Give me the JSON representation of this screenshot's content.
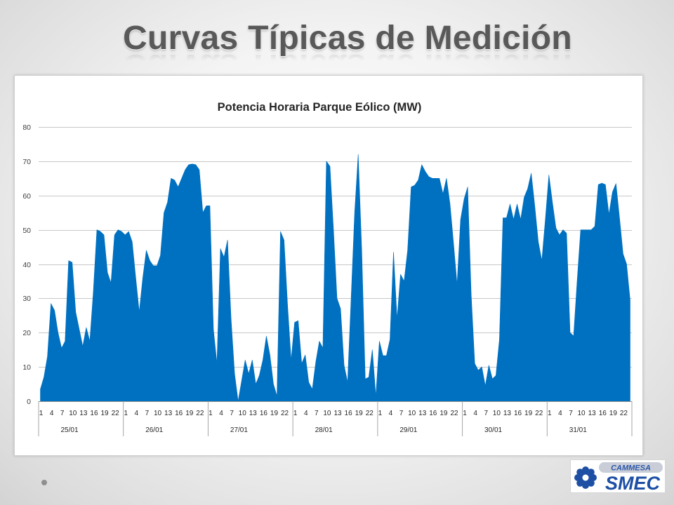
{
  "slide": {
    "title": "Curvas Típicas de Medición"
  },
  "colors": {
    "title_text": "#595959",
    "background": "#f4f4f4",
    "logo_blue": "#1d4fa5"
  },
  "logo": {
    "icon": "star-emblem-icon",
    "top_text": "CAMMESA",
    "main_text": "SMEC"
  },
  "chart_data": {
    "type": "area",
    "title": "Potencia Horaria Parque Eólico (MW)",
    "ylim": [
      0,
      80
    ],
    "y_tick_labels": [
      "0",
      "10",
      "20",
      "30",
      "40",
      "50",
      "60",
      "70",
      "80"
    ],
    "x_hour_tick_labels": [
      "1",
      "4",
      "7",
      "10",
      "13",
      "16",
      "19",
      "22"
    ],
    "grid": true,
    "legend": "none",
    "series_color": "#0070C0",
    "x_groups": [
      {
        "label": "25/01",
        "values": [
          3.5,
          7,
          13,
          28.5,
          26.5,
          20,
          15.5,
          17.5,
          41,
          40.5,
          26,
          21,
          16,
          21.5,
          17.5,
          32,
          50,
          49.5,
          48.5,
          37.5,
          34.5,
          48.5,
          50,
          49.5
        ]
      },
      {
        "label": "26/01",
        "values": [
          48.5,
          49.5,
          46.5,
          36,
          26,
          36,
          44,
          41,
          39.5,
          39.5,
          42.5,
          55,
          58,
          65,
          64.5,
          62.5,
          65,
          67.5,
          69,
          69.2,
          69,
          67.5,
          55,
          57
        ]
      },
      {
        "label": "27/01",
        "values": [
          57,
          21,
          11,
          44.5,
          42,
          47,
          24,
          8,
          0,
          6,
          12,
          8,
          12,
          5,
          7.5,
          12,
          19,
          13.5,
          5,
          1.5,
          49.5,
          47,
          28,
          12
        ]
      },
      {
        "label": "28/01",
        "values": [
          23,
          23.5,
          11,
          13.5,
          5.5,
          3.5,
          11.5,
          17.5,
          15.5,
          70,
          68.5,
          50,
          30,
          27,
          10.5,
          5.5,
          30,
          55,
          72,
          44,
          6.5,
          7,
          15,
          1.5
        ]
      },
      {
        "label": "29/01",
        "values": [
          17.5,
          13.3,
          13.3,
          18,
          43.5,
          24,
          37,
          35,
          44,
          62.5,
          63,
          64.5,
          69,
          67,
          65.5,
          65,
          65,
          65,
          60.5,
          65,
          57.5,
          46,
          34,
          53
        ]
      },
      {
        "label": "30/01",
        "values": [
          59,
          62.5,
          31,
          11,
          9,
          10,
          4.5,
          10.5,
          6.5,
          7.5,
          18,
          53.5,
          53.5,
          57.5,
          53,
          57.5,
          53,
          59.5,
          62,
          66.5,
          57,
          46.5,
          41,
          53
        ]
      },
      {
        "label": "31/01",
        "values": [
          66,
          58,
          50.5,
          48.5,
          50,
          49,
          20,
          19,
          35,
          50,
          50,
          50,
          50,
          51,
          63.2,
          63.6,
          63.2,
          54.5,
          61,
          63.5,
          53.5,
          43,
          40,
          29.5
        ]
      }
    ]
  }
}
